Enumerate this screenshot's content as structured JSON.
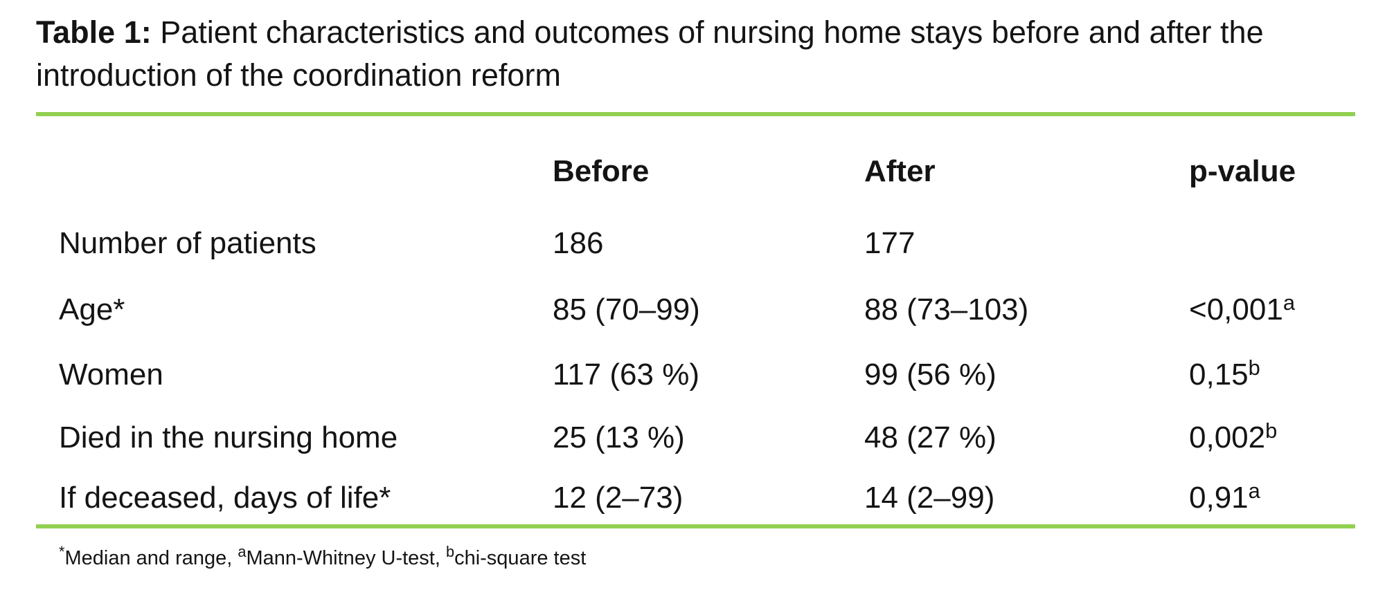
{
  "title": {
    "label": "Table 1:",
    "text": " Patient characteristics and outcomes of nursing home stays before and after the introduction of the coordination reform"
  },
  "table": {
    "columns": {
      "before": "Before",
      "after": "After",
      "p_value": "p-value"
    },
    "rows": [
      {
        "label": "Number of patients",
        "before": "186",
        "after": "177",
        "p_value": "",
        "p_sup": ""
      },
      {
        "label": "Age*",
        "before": "85 (70–99)",
        "after": "88 (73–103)",
        "p_value": "<0,001",
        "p_sup": "a"
      },
      {
        "label": "Women",
        "before": "117 (63 %)",
        "after": "99 (56 %)",
        "p_value": "0,15",
        "p_sup": "b"
      },
      {
        "label": "Died in the nursing home",
        "before": "25 (13 %)",
        "after": "48 (27 %)",
        "p_value": "0,002",
        "p_sup": "b"
      },
      {
        "label": "If deceased, days of life*",
        "before": "12 (2–73)",
        "after": "14 (2–99)",
        "p_value": "0,91",
        "p_sup": "a"
      }
    ]
  },
  "footnote": {
    "parts": [
      {
        "sup": "*",
        "text": "Median and range, "
      },
      {
        "sup": "a",
        "text": "Mann-Whitney U-test, "
      },
      {
        "sup": "b",
        "text": "chi-square test"
      }
    ]
  },
  "colors": {
    "accent_green": "#92D050",
    "text": "#141414",
    "background": "#FFFFFF"
  }
}
